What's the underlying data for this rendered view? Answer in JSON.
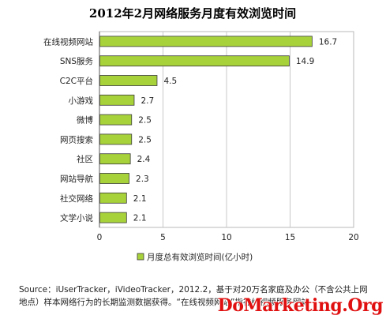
{
  "chart_data": {
    "type": "bar",
    "orientation": "horizontal",
    "title": "2012年2月网络服务月度有效浏览时间",
    "categories": [
      "在线视频网站",
      "SNS服务",
      "C2C平台",
      "小游戏",
      "微博",
      "网页搜索",
      "社区",
      "网站导航",
      "社交网络",
      "文学小说"
    ],
    "values": [
      16.7,
      14.9,
      4.5,
      2.7,
      2.5,
      2.5,
      2.4,
      2.3,
      2.1,
      2.1
    ],
    "value_labels": [
      "16.7",
      "14.9",
      "4.5",
      "2.7",
      "2.5",
      "2.5",
      "2.4",
      "2.3",
      "2.1",
      "2.1"
    ],
    "xlim": [
      0,
      20
    ],
    "xticks": [
      "0",
      "5",
      "10",
      "15",
      "20"
    ],
    "grid": true,
    "legend": {
      "placement": "bottom",
      "entries": [
        "月度总有效浏览时间(亿小时)"
      ]
    },
    "bar_color": "#a8d23a",
    "bar_stroke": "#3a3a3a"
  },
  "source_note": "Source：iUserTracker，iVideoTracker，2012.2，基于对20万名家庭及办公（不含公共上网地点）样本网络行为的长期监测数据获得。“在线视频网站”指在线视频服务网站",
  "watermark": "DoMarketing.Org"
}
